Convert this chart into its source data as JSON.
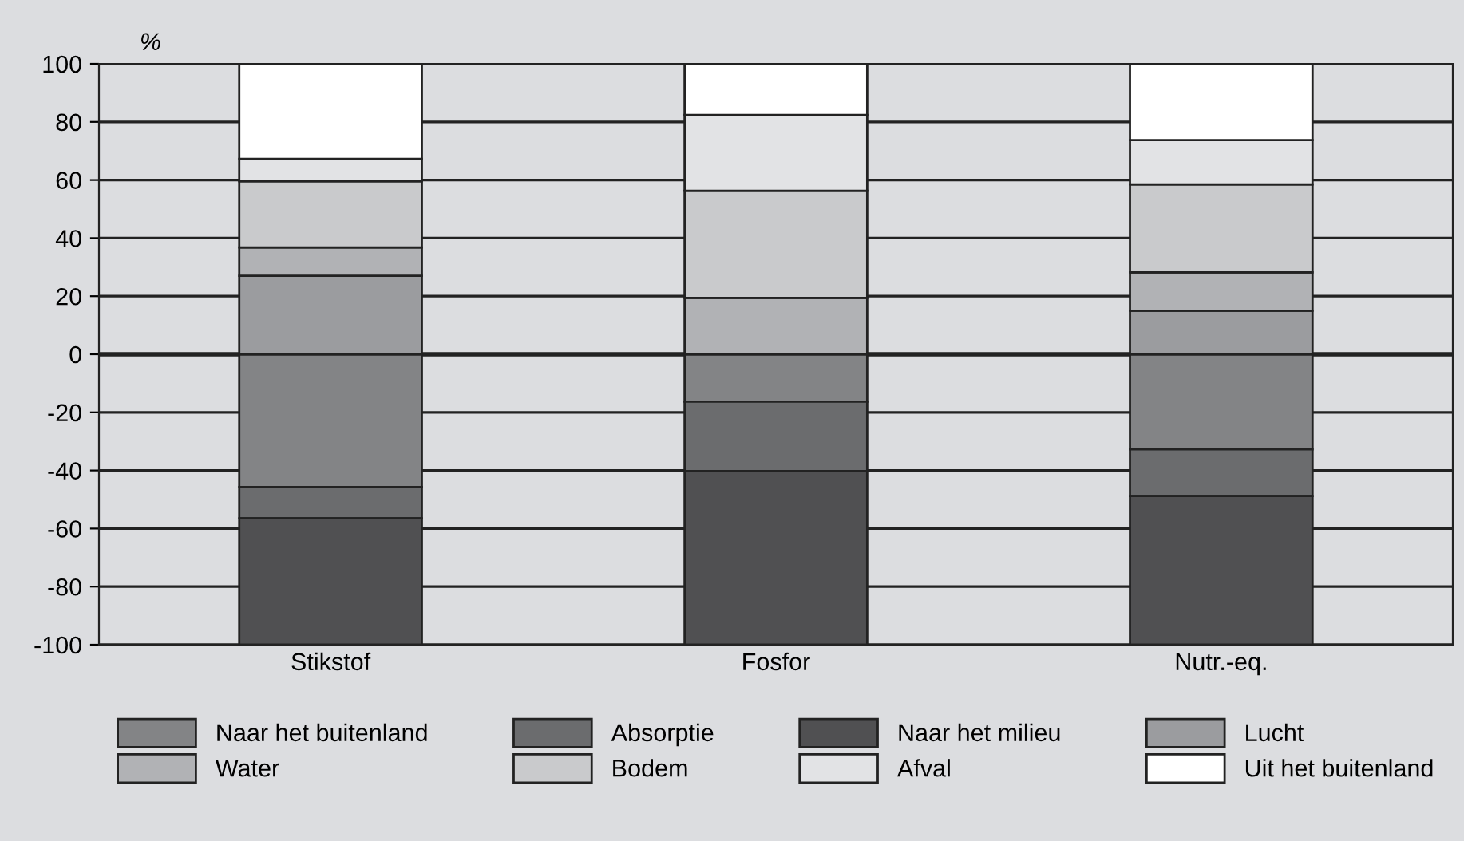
{
  "chart_data": {
    "type": "bar",
    "stacked": true,
    "ylabel": "%",
    "categories": [
      "Stikstof",
      "Fosfor",
      "Nutr.-eq."
    ],
    "series": [
      {
        "name": "Naar het buitenland",
        "color": "#838486",
        "values": [
          -45.7,
          -16.3,
          -32.7
        ]
      },
      {
        "name": "Absorptie",
        "color": "#6b6c6e",
        "values": [
          -10.8,
          -23.9,
          -16.1
        ]
      },
      {
        "name": "Naar het milieu",
        "color": "#505052",
        "values": [
          -43.5,
          -59.8,
          -51.2
        ]
      },
      {
        "name": "Lucht",
        "color": "#9b9c9f",
        "values": [
          27.0,
          null,
          15.0
        ]
      },
      {
        "name": "Water",
        "color": "#b1b2b5",
        "values": [
          9.8,
          19.4,
          13.2
        ]
      },
      {
        "name": "Bodem",
        "color": "#c9cacc",
        "values": [
          22.8,
          36.9,
          30.3
        ]
      },
      {
        "name": "Afval",
        "color": "#e2e3e5",
        "values": [
          7.7,
          26.1,
          15.2
        ]
      },
      {
        "name": "Uit het buitenland",
        "color": "#ffffff",
        "values": [
          32.7,
          17.6,
          26.3
        ]
      }
    ],
    "ylim": [
      -100,
      100
    ],
    "yticks": [
      -100,
      -80,
      -60,
      -40,
      -20,
      0,
      20,
      40,
      60,
      80,
      100
    ],
    "ref_lines": [
      {
        "axis": "y",
        "value": 0
      }
    ],
    "grid": "y",
    "legend": "bottom"
  }
}
